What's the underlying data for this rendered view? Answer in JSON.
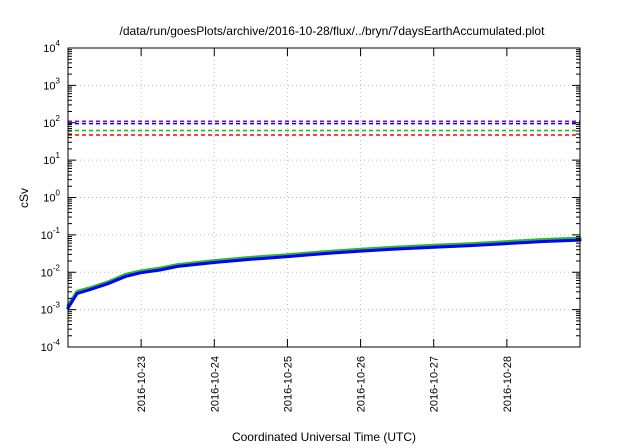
{
  "chart_data": {
    "type": "line",
    "title": "/data/run/goesPlots/archive/2016-10-28/flux/../bryn/7daysEarthAccumulated.plot",
    "xlabel": "Coordinated Universal Time (UTC)",
    "ylabel": "cSv",
    "y_scale": "log",
    "ylim": [
      0.0001,
      10000
    ],
    "y_ticks": [
      {
        "base": "10",
        "exp": "-4",
        "value": 0.0001
      },
      {
        "base": "10",
        "exp": "-3",
        "value": 0.001
      },
      {
        "base": "10",
        "exp": "-2",
        "value": 0.01
      },
      {
        "base": "10",
        "exp": "-1",
        "value": 0.1
      },
      {
        "base": "10",
        "exp": "0",
        "value": 1
      },
      {
        "base": "10",
        "exp": "1",
        "value": 10
      },
      {
        "base": "10",
        "exp": "2",
        "value": 100
      },
      {
        "base": "10",
        "exp": "3",
        "value": 1000
      },
      {
        "base": "10",
        "exp": "4",
        "value": 10000
      }
    ],
    "xlim": [
      "2016-10-22 00:00",
      "2016-10-29 00:00"
    ],
    "x_ticks": [
      "2016-10-23",
      "2016-10-24",
      "2016-10-25",
      "2016-10-26",
      "2016-10-27",
      "2016-10-28"
    ],
    "grid": true,
    "legend": "none",
    "threshold_lines": [
      {
        "value": 110,
        "color": "#9400d3",
        "style": "dashed"
      },
      {
        "value": 95,
        "color": "#0000ff",
        "style": "dashed"
      },
      {
        "value": 62,
        "color": "#00c800",
        "style": "dashed"
      },
      {
        "value": 47,
        "color": "#ff0000",
        "style": "dashed"
      }
    ],
    "series": [
      {
        "color": "#2db82d",
        "x": [
          "2016-10-22 00:00",
          "2016-10-22 03:00",
          "2016-10-22 07:00",
          "2016-10-22 13:00",
          "2016-10-22 19:00",
          "2016-10-23 00:00",
          "2016-10-23 06:00",
          "2016-10-23 12:00",
          "2016-10-24 00:00",
          "2016-10-24 12:00",
          "2016-10-25 00:00",
          "2016-10-25 12:00",
          "2016-10-26 00:00",
          "2016-10-26 12:00",
          "2016-10-27 00:00",
          "2016-10-27 12:00",
          "2016-10-28 00:00",
          "2016-10-28 12:00",
          "2016-10-29 00:00"
        ],
        "y": [
          0.0013,
          0.0031,
          0.0038,
          0.0055,
          0.0088,
          0.0109,
          0.0128,
          0.016,
          0.0205,
          0.025,
          0.0295,
          0.0355,
          0.0415,
          0.047,
          0.0525,
          0.058,
          0.066,
          0.075,
          0.082
        ]
      },
      {
        "color": "#0000ff",
        "x": [
          "2016-10-22 00:00",
          "2016-10-22 03:00",
          "2016-10-22 07:00",
          "2016-10-22 13:00",
          "2016-10-22 19:00",
          "2016-10-23 00:00",
          "2016-10-23 06:00",
          "2016-10-23 12:00",
          "2016-10-24 00:00",
          "2016-10-24 12:00",
          "2016-10-25 00:00",
          "2016-10-25 12:00",
          "2016-10-26 00:00",
          "2016-10-26 12:00",
          "2016-10-27 00:00",
          "2016-10-27 12:00",
          "2016-10-28 00:00",
          "2016-10-28 12:00",
          "2016-10-29 00:00"
        ],
        "y": [
          0.0011,
          0.0027,
          0.0034,
          0.0049,
          0.0078,
          0.0097,
          0.0114,
          0.0143,
          0.0182,
          0.0222,
          0.0262,
          0.0315,
          0.0368,
          0.0418,
          0.0468,
          0.0518,
          0.0585,
          0.0665,
          0.0725
        ]
      }
    ]
  }
}
